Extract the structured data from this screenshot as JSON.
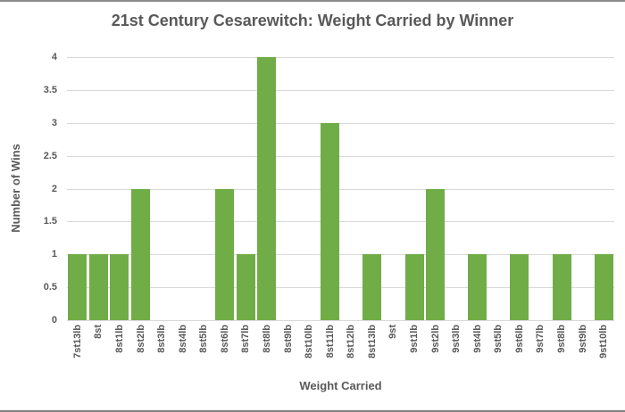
{
  "chart_data": {
    "type": "bar",
    "title": "21st Century Cesarewitch: Weight Carried by Winner",
    "xlabel": "Weight Carried",
    "ylabel": "Number of Wins",
    "categories": [
      "7st13lb",
      "8st",
      "8st1lb",
      "8st2lb",
      "8st3lb",
      "8st4lb",
      "8st5lb",
      "8st6lb",
      "8st7lb",
      "8st8lb",
      "8st9lb",
      "8st10lb",
      "8st11lb",
      "8st12lb",
      "8st13lb",
      "9st",
      "9st1lb",
      "9st2lb",
      "9st3lb",
      "9st4lb",
      "9st5lb",
      "9st6lb",
      "9st7lb",
      "9st8lb",
      "9st9lb",
      "9st10lb"
    ],
    "values": [
      1,
      1,
      1,
      2,
      0,
      0,
      0,
      2,
      1,
      4,
      0,
      0,
      3,
      0,
      1,
      0,
      1,
      2,
      0,
      1,
      0,
      1,
      0,
      1,
      0,
      1
    ],
    "ylim": [
      0,
      4
    ],
    "yticks": [
      0,
      0.5,
      1,
      1.5,
      2,
      2.5,
      3,
      3.5,
      4
    ],
    "ytick_labels": [
      "0",
      "0.5",
      "1",
      "1.5",
      "2",
      "2.5",
      "3",
      "3.5",
      "4"
    ],
    "grid": true,
    "legend": false,
    "bar_color": "#70AD47",
    "text_color": "#595959",
    "gridline_color": "#D9D9D9"
  }
}
